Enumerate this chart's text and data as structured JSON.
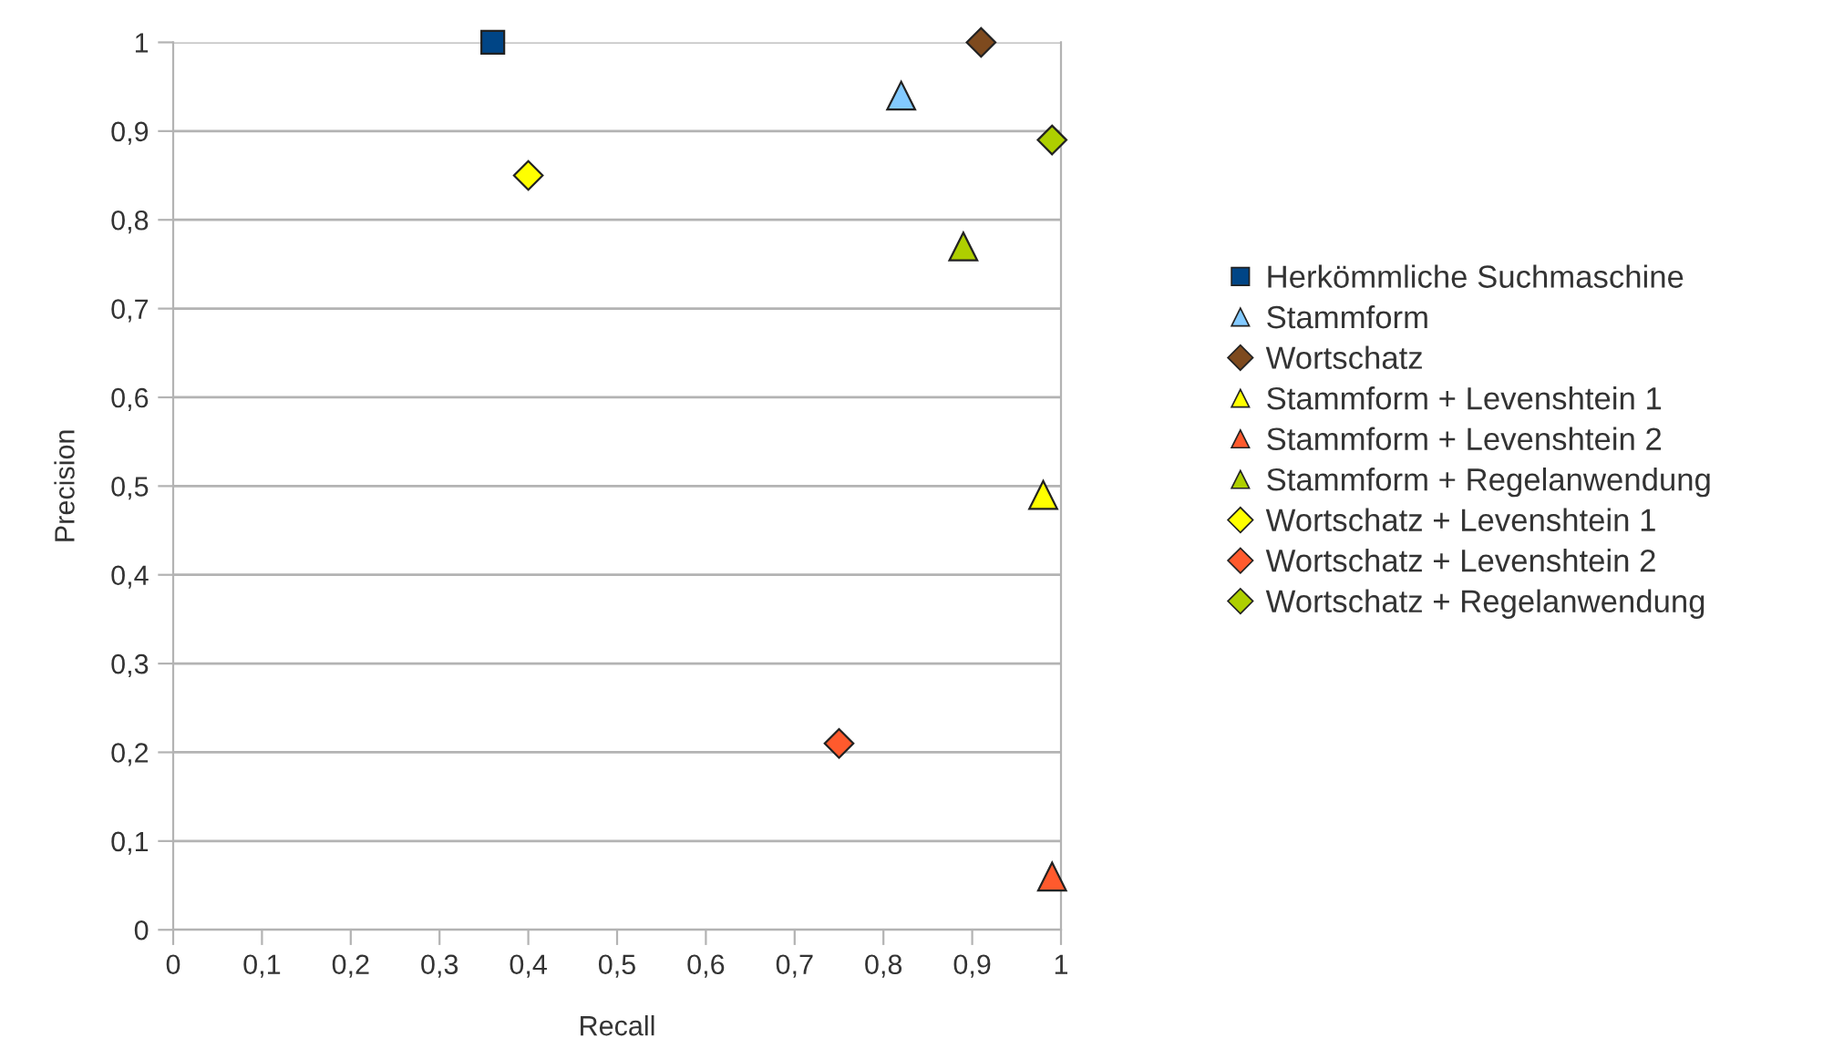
{
  "chart_data": {
    "type": "scatter",
    "xlabel": "Recall",
    "ylabel": "Precision",
    "xlim": [
      0,
      1
    ],
    "ylim": [
      0,
      1
    ],
    "xticks": [
      {
        "value": 0,
        "label": "0"
      },
      {
        "value": 0.1,
        "label": "0,1"
      },
      {
        "value": 0.2,
        "label": "0,2"
      },
      {
        "value": 0.3,
        "label": "0,3"
      },
      {
        "value": 0.4,
        "label": "0,4"
      },
      {
        "value": 0.5,
        "label": "0,5"
      },
      {
        "value": 0.6,
        "label": "0,6"
      },
      {
        "value": 0.7,
        "label": "0,7"
      },
      {
        "value": 0.8,
        "label": "0,8"
      },
      {
        "value": 0.9,
        "label": "0,9"
      },
      {
        "value": 1,
        "label": "1"
      }
    ],
    "yticks": [
      {
        "value": 0,
        "label": "0"
      },
      {
        "value": 0.1,
        "label": "0,1"
      },
      {
        "value": 0.2,
        "label": "0,2"
      },
      {
        "value": 0.3,
        "label": "0,3"
      },
      {
        "value": 0.4,
        "label": "0,4"
      },
      {
        "value": 0.5,
        "label": "0,5"
      },
      {
        "value": 0.6,
        "label": "0,6"
      },
      {
        "value": 0.7,
        "label": "0,7"
      },
      {
        "value": 0.8,
        "label": "0,8"
      },
      {
        "value": 0.9,
        "label": "0,9"
      },
      {
        "value": 1,
        "label": "1"
      }
    ],
    "grid": "y",
    "legend": "right",
    "series": [
      {
        "name": "Herkömmliche Suchmaschine",
        "color": "#004586",
        "marker": "square",
        "x": [
          0.36
        ],
        "values": [
          1.0
        ]
      },
      {
        "name": "Stammform",
        "color": "#83caff",
        "marker": "triangle",
        "x": [
          0.82
        ],
        "values": [
          0.94
        ]
      },
      {
        "name": "Wortschatz",
        "color": "#7e4a1e",
        "marker": "diamond",
        "x": [
          0.91
        ],
        "values": [
          1.0
        ]
      },
      {
        "name": "Stammform + Levenshtein 1",
        "color": "#ffff00",
        "marker": "triangle",
        "x": [
          0.98
        ],
        "values": [
          0.49
        ]
      },
      {
        "name": "Stammform + Levenshtein 2",
        "color": "#ff5a2d",
        "marker": "triangle",
        "x": [
          0.99
        ],
        "values": [
          0.06
        ]
      },
      {
        "name": "Stammform + Regelanwendung",
        "color": "#aecf00",
        "marker": "triangle",
        "x": [
          0.89
        ],
        "values": [
          0.77
        ]
      },
      {
        "name": "Wortschatz + Levenshtein 1",
        "color": "#ffff00",
        "marker": "diamond",
        "x": [
          0.4
        ],
        "values": [
          0.85
        ]
      },
      {
        "name": "Wortschatz + Levenshtein 2",
        "color": "#ff5a2d",
        "marker": "diamond",
        "x": [
          0.75
        ],
        "values": [
          0.21
        ]
      },
      {
        "name": "Wortschatz + Regelanwendung",
        "color": "#aecf00",
        "marker": "diamond",
        "x": [
          0.99
        ],
        "values": [
          0.89
        ]
      }
    ]
  }
}
